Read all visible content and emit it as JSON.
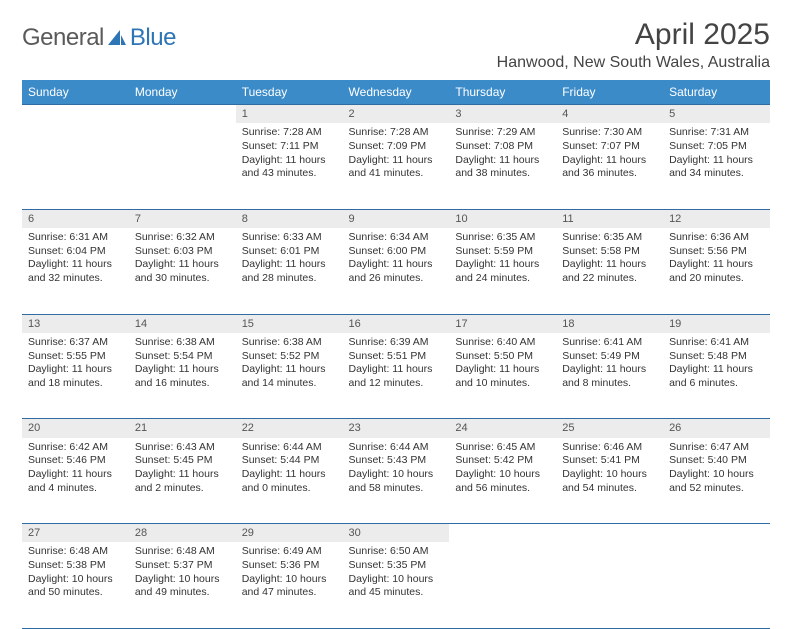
{
  "logo": {
    "text1": "General",
    "text2": "Blue"
  },
  "title": "April 2025",
  "location": "Hanwood, New South Wales, Australia",
  "colors": {
    "header_bg": "#3b8bc9",
    "header_text": "#ffffff",
    "daynum_bg": "#ececec",
    "border": "#2e6ca3",
    "logo_gray": "#5a5a5a",
    "logo_blue": "#2e75b6"
  },
  "fonts": {
    "title_size": 30,
    "location_size": 16,
    "th_size": 12,
    "cell_size": 10.5
  },
  "day_headers": [
    "Sunday",
    "Monday",
    "Tuesday",
    "Wednesday",
    "Thursday",
    "Friday",
    "Saturday"
  ],
  "weeks": [
    [
      null,
      null,
      {
        "n": "1",
        "sr": "Sunrise: 7:28 AM",
        "ss": "Sunset: 7:11 PM",
        "d1": "Daylight: 11 hours",
        "d2": "and 43 minutes."
      },
      {
        "n": "2",
        "sr": "Sunrise: 7:28 AM",
        "ss": "Sunset: 7:09 PM",
        "d1": "Daylight: 11 hours",
        "d2": "and 41 minutes."
      },
      {
        "n": "3",
        "sr": "Sunrise: 7:29 AM",
        "ss": "Sunset: 7:08 PM",
        "d1": "Daylight: 11 hours",
        "d2": "and 38 minutes."
      },
      {
        "n": "4",
        "sr": "Sunrise: 7:30 AM",
        "ss": "Sunset: 7:07 PM",
        "d1": "Daylight: 11 hours",
        "d2": "and 36 minutes."
      },
      {
        "n": "5",
        "sr": "Sunrise: 7:31 AM",
        "ss": "Sunset: 7:05 PM",
        "d1": "Daylight: 11 hours",
        "d2": "and 34 minutes."
      }
    ],
    [
      {
        "n": "6",
        "sr": "Sunrise: 6:31 AM",
        "ss": "Sunset: 6:04 PM",
        "d1": "Daylight: 11 hours",
        "d2": "and 32 minutes."
      },
      {
        "n": "7",
        "sr": "Sunrise: 6:32 AM",
        "ss": "Sunset: 6:03 PM",
        "d1": "Daylight: 11 hours",
        "d2": "and 30 minutes."
      },
      {
        "n": "8",
        "sr": "Sunrise: 6:33 AM",
        "ss": "Sunset: 6:01 PM",
        "d1": "Daylight: 11 hours",
        "d2": "and 28 minutes."
      },
      {
        "n": "9",
        "sr": "Sunrise: 6:34 AM",
        "ss": "Sunset: 6:00 PM",
        "d1": "Daylight: 11 hours",
        "d2": "and 26 minutes."
      },
      {
        "n": "10",
        "sr": "Sunrise: 6:35 AM",
        "ss": "Sunset: 5:59 PM",
        "d1": "Daylight: 11 hours",
        "d2": "and 24 minutes."
      },
      {
        "n": "11",
        "sr": "Sunrise: 6:35 AM",
        "ss": "Sunset: 5:58 PM",
        "d1": "Daylight: 11 hours",
        "d2": "and 22 minutes."
      },
      {
        "n": "12",
        "sr": "Sunrise: 6:36 AM",
        "ss": "Sunset: 5:56 PM",
        "d1": "Daylight: 11 hours",
        "d2": "and 20 minutes."
      }
    ],
    [
      {
        "n": "13",
        "sr": "Sunrise: 6:37 AM",
        "ss": "Sunset: 5:55 PM",
        "d1": "Daylight: 11 hours",
        "d2": "and 18 minutes."
      },
      {
        "n": "14",
        "sr": "Sunrise: 6:38 AM",
        "ss": "Sunset: 5:54 PM",
        "d1": "Daylight: 11 hours",
        "d2": "and 16 minutes."
      },
      {
        "n": "15",
        "sr": "Sunrise: 6:38 AM",
        "ss": "Sunset: 5:52 PM",
        "d1": "Daylight: 11 hours",
        "d2": "and 14 minutes."
      },
      {
        "n": "16",
        "sr": "Sunrise: 6:39 AM",
        "ss": "Sunset: 5:51 PM",
        "d1": "Daylight: 11 hours",
        "d2": "and 12 minutes."
      },
      {
        "n": "17",
        "sr": "Sunrise: 6:40 AM",
        "ss": "Sunset: 5:50 PM",
        "d1": "Daylight: 11 hours",
        "d2": "and 10 minutes."
      },
      {
        "n": "18",
        "sr": "Sunrise: 6:41 AM",
        "ss": "Sunset: 5:49 PM",
        "d1": "Daylight: 11 hours",
        "d2": "and 8 minutes."
      },
      {
        "n": "19",
        "sr": "Sunrise: 6:41 AM",
        "ss": "Sunset: 5:48 PM",
        "d1": "Daylight: 11 hours",
        "d2": "and 6 minutes."
      }
    ],
    [
      {
        "n": "20",
        "sr": "Sunrise: 6:42 AM",
        "ss": "Sunset: 5:46 PM",
        "d1": "Daylight: 11 hours",
        "d2": "and 4 minutes."
      },
      {
        "n": "21",
        "sr": "Sunrise: 6:43 AM",
        "ss": "Sunset: 5:45 PM",
        "d1": "Daylight: 11 hours",
        "d2": "and 2 minutes."
      },
      {
        "n": "22",
        "sr": "Sunrise: 6:44 AM",
        "ss": "Sunset: 5:44 PM",
        "d1": "Daylight: 11 hours",
        "d2": "and 0 minutes."
      },
      {
        "n": "23",
        "sr": "Sunrise: 6:44 AM",
        "ss": "Sunset: 5:43 PM",
        "d1": "Daylight: 10 hours",
        "d2": "and 58 minutes."
      },
      {
        "n": "24",
        "sr": "Sunrise: 6:45 AM",
        "ss": "Sunset: 5:42 PM",
        "d1": "Daylight: 10 hours",
        "d2": "and 56 minutes."
      },
      {
        "n": "25",
        "sr": "Sunrise: 6:46 AM",
        "ss": "Sunset: 5:41 PM",
        "d1": "Daylight: 10 hours",
        "d2": "and 54 minutes."
      },
      {
        "n": "26",
        "sr": "Sunrise: 6:47 AM",
        "ss": "Sunset: 5:40 PM",
        "d1": "Daylight: 10 hours",
        "d2": "and 52 minutes."
      }
    ],
    [
      {
        "n": "27",
        "sr": "Sunrise: 6:48 AM",
        "ss": "Sunset: 5:38 PM",
        "d1": "Daylight: 10 hours",
        "d2": "and 50 minutes."
      },
      {
        "n": "28",
        "sr": "Sunrise: 6:48 AM",
        "ss": "Sunset: 5:37 PM",
        "d1": "Daylight: 10 hours",
        "d2": "and 49 minutes."
      },
      {
        "n": "29",
        "sr": "Sunrise: 6:49 AM",
        "ss": "Sunset: 5:36 PM",
        "d1": "Daylight: 10 hours",
        "d2": "and 47 minutes."
      },
      {
        "n": "30",
        "sr": "Sunrise: 6:50 AM",
        "ss": "Sunset: 5:35 PM",
        "d1": "Daylight: 10 hours",
        "d2": "and 45 minutes."
      },
      null,
      null,
      null
    ]
  ]
}
